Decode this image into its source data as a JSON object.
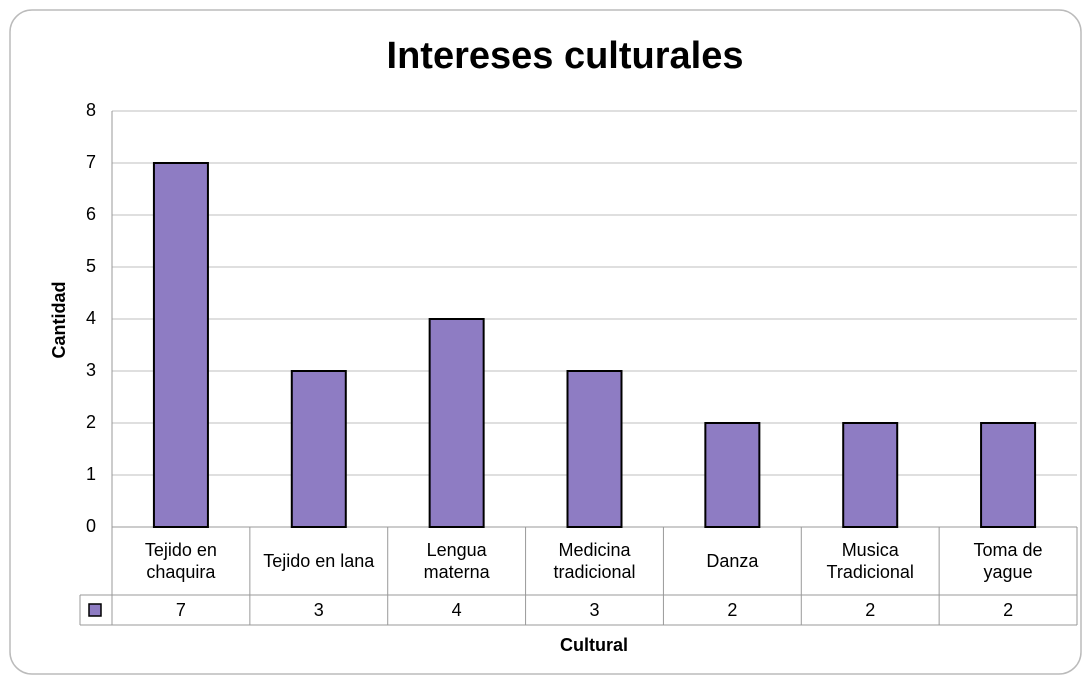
{
  "chart_data": {
    "type": "bar",
    "title": "Intereses culturales",
    "x_label": "Cultural",
    "y_label": "Cantidad",
    "categories": [
      "Tejido en chaquira",
      "Tejido en lana",
      "Lengua materna",
      "Medicina tradicional",
      "Danza",
      "Musica Tradicional",
      "Toma de yague"
    ],
    "values": [
      7,
      3,
      4,
      3,
      2,
      2,
      2
    ],
    "color": "#8e7cc3",
    "ylim": [
      0,
      8
    ],
    "yticks": [
      0,
      1,
      2,
      3,
      4,
      5,
      6,
      7,
      8
    ],
    "grid": true
  }
}
